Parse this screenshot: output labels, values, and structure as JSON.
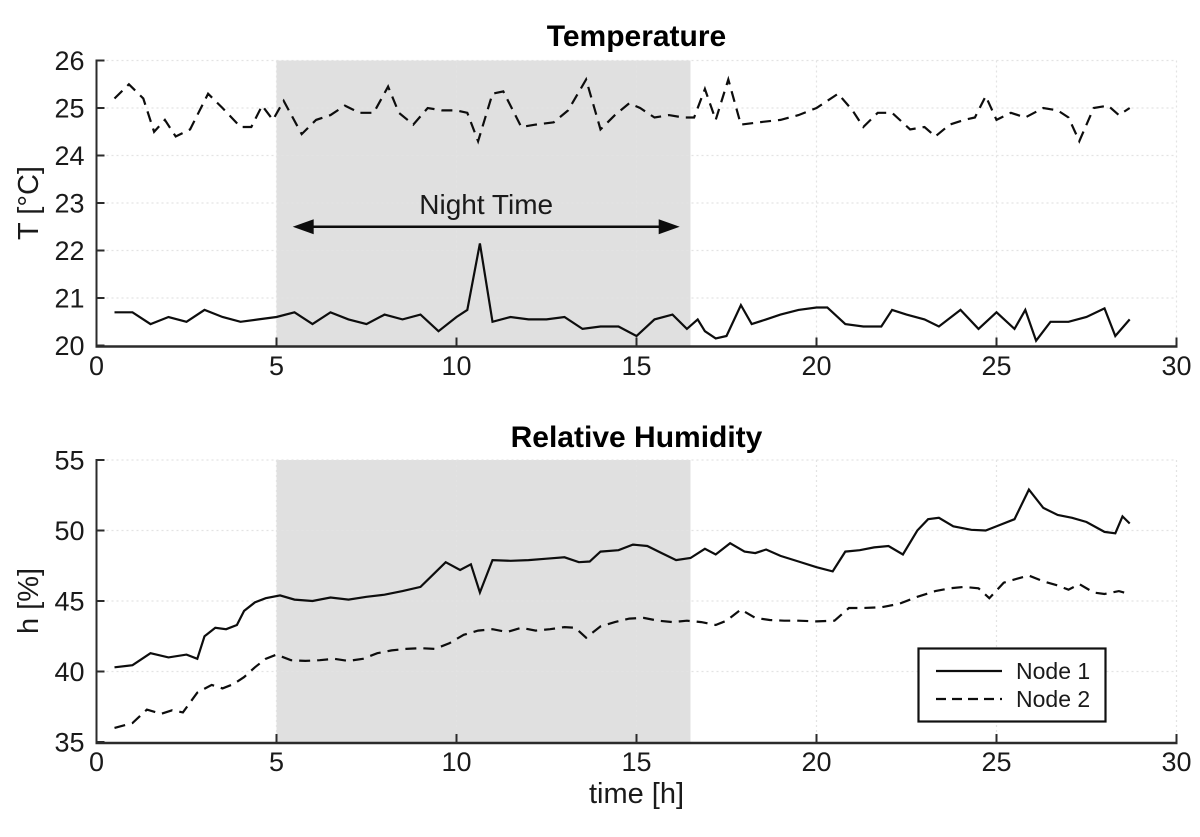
{
  "style": {
    "background": "#ffffff",
    "line_color": "#0d0d0d",
    "shade_color": "#e0e0e0",
    "grid_color": "#e3e3e3",
    "axis_color": "#2b2b2b",
    "legend_border_color": "#111111"
  },
  "chart_data": [
    {
      "type": "line",
      "title": "Temperature",
      "xlabel": "",
      "ylabel": "T [°C]",
      "xlim": [
        0,
        30
      ],
      "ylim": [
        20,
        26
      ],
      "xticks": [
        0,
        5,
        10,
        15,
        20,
        25,
        30
      ],
      "yticks": [
        20,
        21,
        22,
        23,
        24,
        25,
        26
      ],
      "grid": true,
      "night_region": {
        "x0": 5.0,
        "x1": 16.5
      },
      "annotation": {
        "text": "Night Time",
        "arrow_x0": 5.45,
        "arrow_x1": 16.2,
        "arrow_y": 22.5
      },
      "series": [
        {
          "name": "Node 1",
          "style": "solid",
          "x": [
            0.5,
            1.0,
            1.5,
            2.0,
            2.5,
            3.0,
            3.5,
            4.0,
            4.5,
            5.0,
            5.5,
            6.0,
            6.5,
            7.0,
            7.5,
            8.0,
            8.5,
            9.0,
            9.5,
            10.0,
            10.3,
            10.65,
            11.0,
            11.5,
            12.0,
            12.5,
            13.0,
            13.5,
            14.0,
            14.5,
            15.0,
            15.5,
            16.0,
            16.4,
            16.7,
            16.9,
            17.2,
            17.5,
            17.9,
            18.2,
            18.6,
            19.0,
            19.5,
            20.0,
            20.3,
            20.8,
            21.3,
            21.8,
            22.1,
            22.5,
            23.0,
            23.4,
            24.0,
            24.5,
            25.0,
            25.5,
            25.8,
            26.1,
            26.5,
            27.0,
            27.5,
            28.0,
            28.3,
            28.7
          ],
          "y": [
            20.7,
            20.7,
            20.45,
            20.6,
            20.5,
            20.75,
            20.6,
            20.5,
            20.55,
            20.6,
            20.7,
            20.45,
            20.7,
            20.55,
            20.45,
            20.65,
            20.55,
            20.65,
            20.3,
            20.6,
            20.75,
            22.15,
            20.5,
            20.6,
            20.55,
            20.55,
            20.6,
            20.35,
            20.4,
            20.4,
            20.2,
            20.55,
            20.65,
            20.35,
            20.55,
            20.3,
            20.15,
            20.2,
            20.85,
            20.45,
            20.55,
            20.65,
            20.75,
            20.8,
            20.8,
            20.45,
            20.4,
            20.4,
            20.75,
            20.65,
            20.55,
            20.4,
            20.75,
            20.35,
            20.7,
            20.35,
            20.75,
            20.1,
            20.5,
            20.5,
            20.6,
            20.78,
            20.2,
            20.55
          ]
        },
        {
          "name": "Node 2",
          "style": "dashed",
          "x": [
            0.5,
            0.9,
            1.3,
            1.6,
            1.9,
            2.2,
            2.6,
            3.1,
            3.5,
            4.0,
            4.3,
            4.6,
            4.9,
            5.2,
            5.7,
            6.1,
            6.5,
            6.9,
            7.3,
            7.7,
            8.1,
            8.4,
            8.8,
            9.2,
            9.6,
            10.0,
            10.3,
            10.6,
            11.0,
            11.3,
            11.8,
            12.2,
            12.7,
            13.1,
            13.6,
            14.0,
            14.4,
            14.8,
            15.1,
            15.5,
            15.9,
            16.3,
            16.6,
            16.9,
            17.2,
            17.55,
            17.9,
            18.4,
            19.0,
            19.5,
            20.0,
            20.6,
            21.0,
            21.3,
            21.7,
            22.1,
            22.6,
            23.0,
            23.3,
            23.7,
            24.1,
            24.4,
            24.7,
            25.0,
            25.4,
            25.8,
            26.3,
            26.7,
            27.0,
            27.3,
            27.7,
            28.1,
            28.4,
            28.7
          ],
          "y": [
            25.2,
            25.5,
            25.2,
            24.5,
            24.75,
            24.4,
            24.55,
            25.3,
            25.0,
            24.6,
            24.6,
            25.05,
            24.75,
            25.15,
            24.45,
            24.75,
            24.85,
            25.05,
            24.9,
            24.9,
            25.45,
            24.9,
            24.65,
            25.0,
            24.95,
            24.95,
            24.9,
            24.3,
            25.3,
            25.35,
            24.6,
            24.65,
            24.7,
            24.95,
            25.6,
            24.55,
            24.85,
            25.1,
            25.0,
            24.8,
            24.85,
            24.8,
            24.8,
            25.4,
            24.75,
            25.6,
            24.65,
            24.7,
            24.75,
            24.85,
            25.0,
            25.3,
            24.95,
            24.6,
            24.9,
            24.9,
            24.55,
            24.6,
            24.4,
            24.65,
            24.75,
            24.8,
            25.25,
            24.75,
            24.9,
            24.8,
            25.0,
            24.95,
            24.8,
            24.3,
            25.0,
            25.05,
            24.85,
            25.0
          ]
        }
      ]
    },
    {
      "type": "line",
      "title": "Relative Humidity",
      "xlabel": "time [h]",
      "ylabel": "h [%]",
      "xlim": [
        0,
        30
      ],
      "ylim": [
        35,
        55
      ],
      "xticks": [
        0,
        5,
        10,
        15,
        20,
        25,
        30
      ],
      "yticks": [
        35,
        40,
        45,
        50,
        55
      ],
      "grid": true,
      "night_region": {
        "x0": 5.0,
        "x1": 16.5
      },
      "legend": {
        "entries": [
          {
            "label": "Node 1",
            "style": "solid"
          },
          {
            "label": "Node 2",
            "style": "dashed"
          }
        ],
        "position": "southeast"
      },
      "series": [
        {
          "name": "Node 1",
          "style": "solid",
          "x": [
            0.5,
            1.0,
            1.5,
            2.0,
            2.5,
            2.8,
            3.0,
            3.3,
            3.6,
            3.9,
            4.1,
            4.4,
            4.7,
            5.1,
            5.5,
            6.0,
            6.5,
            7.0,
            7.5,
            8.0,
            8.5,
            9.0,
            9.4,
            9.7,
            10.1,
            10.4,
            10.65,
            11.0,
            11.5,
            12.0,
            12.5,
            13.0,
            13.4,
            13.7,
            14.0,
            14.5,
            14.9,
            15.3,
            15.7,
            16.1,
            16.5,
            16.9,
            17.2,
            17.6,
            18.0,
            18.3,
            18.6,
            19.0,
            19.5,
            20.0,
            20.45,
            20.8,
            21.2,
            21.6,
            22.0,
            22.4,
            22.8,
            23.1,
            23.4,
            23.8,
            24.3,
            24.7,
            25.1,
            25.5,
            25.9,
            26.3,
            26.7,
            27.1,
            27.5,
            28.0,
            28.3,
            28.5,
            28.7
          ],
          "y": [
            40.3,
            40.45,
            41.3,
            41.0,
            41.2,
            40.9,
            42.5,
            43.1,
            43.0,
            43.3,
            44.3,
            44.9,
            45.2,
            45.4,
            45.1,
            45.0,
            45.25,
            45.1,
            45.3,
            45.45,
            45.7,
            46.0,
            47.0,
            47.75,
            47.2,
            47.6,
            45.6,
            47.9,
            47.85,
            47.9,
            48.0,
            48.1,
            47.75,
            47.8,
            48.5,
            48.6,
            49.0,
            48.9,
            48.4,
            47.9,
            48.05,
            48.7,
            48.3,
            49.1,
            48.5,
            48.4,
            48.65,
            48.2,
            47.8,
            47.4,
            47.1,
            48.5,
            48.6,
            48.8,
            48.9,
            48.3,
            50.0,
            50.8,
            50.9,
            50.3,
            50.05,
            50.0,
            50.4,
            50.8,
            52.9,
            51.6,
            51.1,
            50.9,
            50.6,
            49.9,
            49.8,
            51.0,
            50.5
          ]
        },
        {
          "name": "Node 2",
          "style": "dashed",
          "x": [
            0.5,
            1.0,
            1.4,
            1.8,
            2.1,
            2.4,
            2.8,
            3.2,
            3.5,
            3.8,
            4.1,
            4.4,
            4.7,
            5.0,
            5.4,
            5.8,
            6.2,
            6.6,
            7.0,
            7.4,
            7.8,
            8.2,
            8.6,
            9.0,
            9.4,
            9.8,
            10.2,
            10.6,
            11.0,
            11.4,
            11.8,
            12.2,
            12.6,
            13.0,
            13.3,
            13.6,
            14.0,
            14.4,
            14.8,
            15.2,
            15.6,
            16.0,
            16.4,
            16.8,
            17.2,
            17.5,
            17.9,
            18.3,
            18.7,
            19.1,
            19.5,
            20.0,
            20.5,
            20.9,
            21.3,
            21.8,
            22.3,
            22.8,
            23.3,
            23.7,
            24.1,
            24.5,
            24.8,
            25.2,
            25.6,
            25.9,
            26.3,
            26.7,
            27.0,
            27.3,
            27.7,
            28.0,
            28.4,
            28.7
          ],
          "y": [
            36.0,
            36.35,
            37.3,
            37.0,
            37.25,
            37.1,
            38.5,
            39.05,
            38.8,
            39.1,
            39.6,
            40.3,
            40.9,
            41.2,
            40.8,
            40.75,
            40.8,
            40.9,
            40.75,
            40.9,
            41.3,
            41.5,
            41.6,
            41.65,
            41.6,
            42.0,
            42.6,
            42.9,
            43.0,
            42.8,
            43.1,
            42.9,
            43.0,
            43.15,
            43.1,
            42.4,
            43.2,
            43.5,
            43.75,
            43.8,
            43.6,
            43.5,
            43.6,
            43.5,
            43.3,
            43.6,
            44.4,
            43.8,
            43.65,
            43.6,
            43.6,
            43.55,
            43.6,
            44.5,
            44.5,
            44.55,
            44.8,
            45.3,
            45.7,
            45.9,
            46.0,
            45.9,
            45.2,
            46.3,
            46.6,
            46.8,
            46.4,
            46.1,
            45.8,
            46.2,
            45.6,
            45.5,
            45.7,
            45.5
          ]
        }
      ]
    }
  ]
}
